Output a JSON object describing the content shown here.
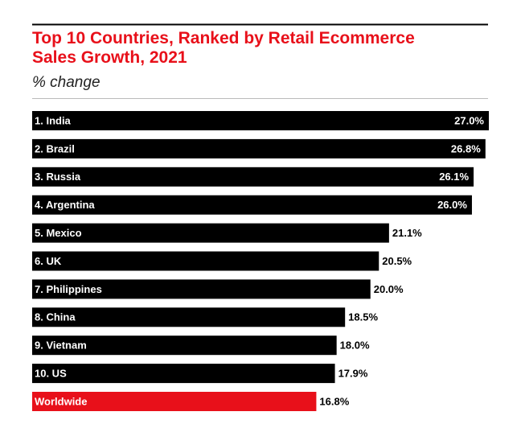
{
  "chart_data": {
    "type": "hbar",
    "title": "Top 10 Countries, Ranked by Retail Ecommerce Sales Growth, 2021",
    "subtitle": "% change",
    "categories": [
      "1. India",
      "2. Brazil",
      "3. Russia",
      "4. Argentina",
      "5. Mexico",
      "6. UK",
      "7. Philippines",
      "8. China",
      "9. Vietnam",
      "10. US",
      "Worldwide"
    ],
    "values": [
      27.0,
      26.8,
      26.1,
      26.0,
      21.1,
      20.5,
      20.0,
      18.5,
      18.0,
      17.9,
      16.8
    ],
    "value_labels": [
      "27.0%",
      "26.8%",
      "26.1%",
      "26.0%",
      "21.1%",
      "20.5%",
      "20.0%",
      "18.5%",
      "18.0%",
      "17.9%",
      "16.8%"
    ],
    "colors": [
      "#000000",
      "#000000",
      "#000000",
      "#000000",
      "#000000",
      "#000000",
      "#000000",
      "#000000",
      "#000000",
      "#000000",
      "#e8101a"
    ]
  }
}
